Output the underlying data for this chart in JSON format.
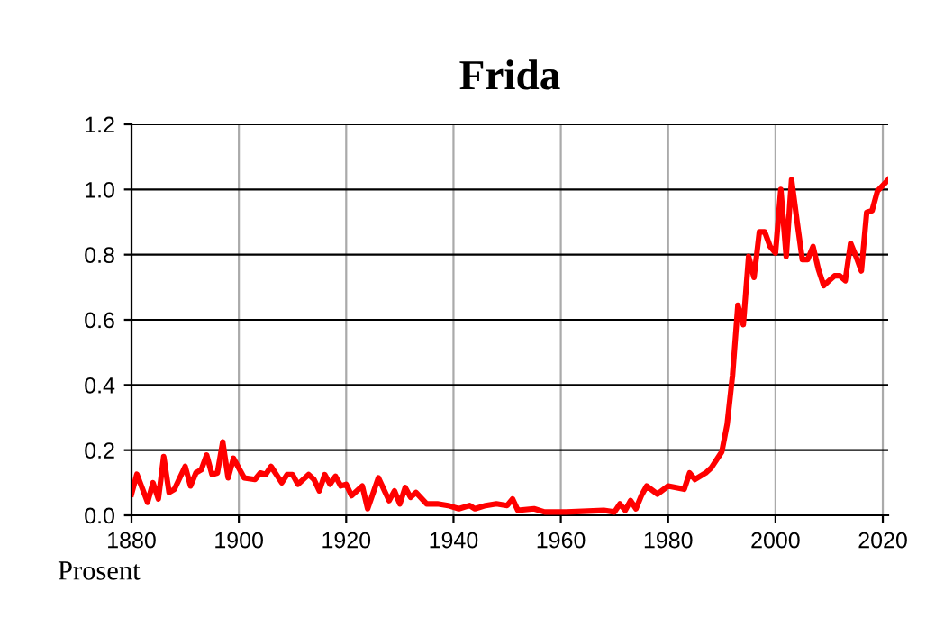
{
  "chart_data": {
    "type": "line",
    "title": "Frida",
    "ylabel": "Prosent",
    "x": [
      1880,
      1881,
      1883,
      1884,
      1885,
      1886,
      1887,
      1888,
      1890,
      1891,
      1892,
      1893,
      1894,
      1895,
      1896,
      1897,
      1898,
      1899,
      1901,
      1903,
      1904,
      1905,
      1906,
      1908,
      1909,
      1910,
      1911,
      1913,
      1914,
      1915,
      1916,
      1917,
      1918,
      1919,
      1920,
      1921,
      1923,
      1924,
      1926,
      1928,
      1929,
      1930,
      1931,
      1932,
      1933,
      1935,
      1937,
      1939,
      1941,
      1943,
      1944,
      1946,
      1948,
      1950,
      1951,
      1952,
      1955,
      1957,
      1961,
      1968,
      1970,
      1971,
      1972,
      1973,
      1974,
      1975,
      1976,
      1978,
      1980,
      1983,
      1984,
      1985,
      1987,
      1988,
      1990,
      1991,
      1992,
      1993,
      1994,
      1995,
      1996,
      1997,
      1998,
      1999,
      2000,
      2001,
      2002,
      2003,
      2004,
      2005,
      2006,
      2007,
      2008,
      2009,
      2010,
      2011,
      2012,
      2013,
      2014,
      2015,
      2016,
      2017,
      2018,
      2019,
      2021
    ],
    "series": [
      {
        "color": "#ff0000",
        "values": [
          0.065,
          0.126,
          0.04,
          0.1,
          0.05,
          0.18,
          0.07,
          0.08,
          0.15,
          0.09,
          0.13,
          0.14,
          0.185,
          0.125,
          0.13,
          0.225,
          0.115,
          0.175,
          0.115,
          0.11,
          0.13,
          0.125,
          0.15,
          0.1,
          0.125,
          0.125,
          0.095,
          0.125,
          0.11,
          0.075,
          0.125,
          0.095,
          0.12,
          0.09,
          0.095,
          0.06,
          0.09,
          0.02,
          0.115,
          0.045,
          0.075,
          0.035,
          0.085,
          0.055,
          0.07,
          0.035,
          0.035,
          0.03,
          0.02,
          0.03,
          0.02,
          0.03,
          0.035,
          0.03,
          0.05,
          0.015,
          0.02,
          0.01,
          0.01,
          0.015,
          0.01,
          0.035,
          0.015,
          0.045,
          0.02,
          0.06,
          0.09,
          0.065,
          0.09,
          0.08,
          0.13,
          0.11,
          0.13,
          0.145,
          0.195,
          0.28,
          0.43,
          0.645,
          0.585,
          0.795,
          0.73,
          0.87,
          0.87,
          0.825,
          0.805,
          1.0,
          0.795,
          1.03,
          0.905,
          0.785,
          0.785,
          0.825,
          0.755,
          0.705,
          0.72,
          0.735,
          0.735,
          0.72,
          0.835,
          0.795,
          0.75,
          0.93,
          0.935,
          0.995,
          1.03
        ]
      }
    ],
    "xlim": [
      1880,
      2021
    ],
    "ylim": [
      0,
      1.2
    ],
    "xticks": [
      1880,
      1900,
      1920,
      1940,
      1960,
      1980,
      2000,
      2020
    ],
    "yticks": [
      {
        "value": 0,
        "label": "0.0"
      },
      {
        "value": 0.2,
        "label": "0.2"
      },
      {
        "value": 0.4,
        "label": "0.4"
      },
      {
        "value": 0.6,
        "label": "0.6"
      },
      {
        "value": 0.8,
        "label": "0.8"
      },
      {
        "value": 1.0,
        "label": "1.0"
      },
      {
        "value": 1.2,
        "label": "1.2"
      }
    ],
    "grid": true,
    "marker": "none",
    "line_style": "solid"
  }
}
